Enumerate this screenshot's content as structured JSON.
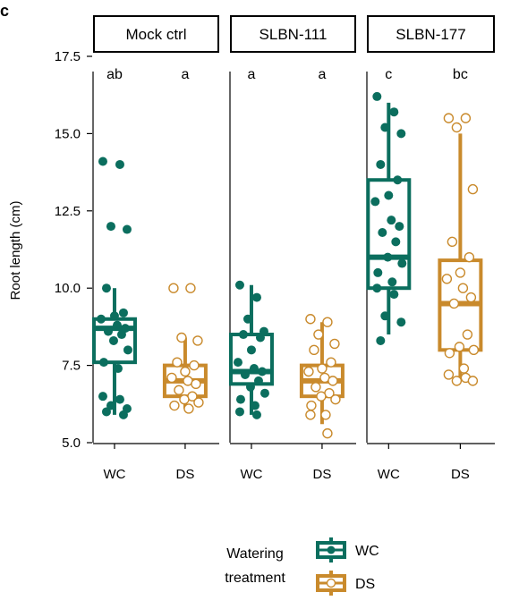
{
  "panel_label": "c",
  "colors": {
    "WC": "#0b6e5e",
    "DS": "#c98a2c"
  },
  "chart_data": {
    "type": "box",
    "ylabel": "Root length (cm)",
    "ylim": [
      5.0,
      17.5
    ],
    "yticks": [
      "5.0",
      "7.5",
      "10.0",
      "12.5",
      "15.0",
      "17.5"
    ],
    "facets": [
      {
        "name": "Mock ctrl",
        "groups": [
          {
            "label": "WC",
            "sig": "ab",
            "box": {
              "whisker_low": 5.9,
              "q1": 7.6,
              "median": 8.7,
              "q3": 9.0,
              "whisker_high": 10.0
            },
            "points": [
              14.1,
              14.0,
              12.0,
              11.9,
              10.0,
              9.2,
              9.1,
              9.0,
              8.8,
              8.7,
              8.6,
              8.5,
              8.3,
              8.0,
              7.6,
              7.4,
              6.5,
              6.4,
              6.2,
              6.1,
              6.0,
              5.9
            ]
          },
          {
            "label": "DS",
            "sig": "a",
            "box": {
              "whisker_low": 6.1,
              "q1": 6.5,
              "median": 7.0,
              "q3": 7.5,
              "whisker_high": 8.4
            },
            "points": [
              10.0,
              10.0,
              8.4,
              8.3,
              7.6,
              7.5,
              7.3,
              7.1,
              7.0,
              6.9,
              6.7,
              6.5,
              6.4,
              6.3,
              6.2,
              6.1
            ]
          }
        ]
      },
      {
        "name": "SLBN-111",
        "groups": [
          {
            "label": "WC",
            "sig": "a",
            "box": {
              "whisker_low": 5.9,
              "q1": 6.9,
              "median": 7.3,
              "q3": 8.5,
              "whisker_high": 10.1
            },
            "points": [
              10.1,
              9.7,
              9.0,
              8.6,
              8.5,
              8.4,
              8.0,
              7.6,
              7.4,
              7.3,
              7.2,
              7.0,
              6.8,
              6.6,
              6.4,
              6.2,
              6.0,
              5.9
            ]
          },
          {
            "label": "DS",
            "sig": "a",
            "box": {
              "whisker_low": 5.6,
              "q1": 6.5,
              "median": 7.0,
              "q3": 7.5,
              "whisker_high": 8.9
            },
            "points": [
              9.0,
              8.9,
              8.5,
              8.2,
              8.0,
              7.6,
              7.4,
              7.3,
              7.1,
              7.0,
              6.8,
              6.6,
              6.5,
              6.4,
              6.2,
              5.9,
              5.9,
              5.3
            ]
          }
        ]
      },
      {
        "name": "SLBN-177",
        "groups": [
          {
            "label": "WC",
            "sig": "c",
            "box": {
              "whisker_low": 8.5,
              "q1": 10.0,
              "median": 11.0,
              "q3": 13.5,
              "whisker_high": 16.0
            },
            "points": [
              16.2,
              15.7,
              15.2,
              15.0,
              14.0,
              13.5,
              13.0,
              12.8,
              12.2,
              12.0,
              11.8,
              11.5,
              11.0,
              10.8,
              10.5,
              10.2,
              10.0,
              9.8,
              9.1,
              8.9,
              8.3
            ]
          },
          {
            "label": "DS",
            "sig": "bc",
            "box": {
              "whisker_low": 7.0,
              "q1": 8.0,
              "median": 9.5,
              "q3": 10.9,
              "whisker_high": 15.0
            },
            "points": [
              15.5,
              15.5,
              15.2,
              13.2,
              11.5,
              11.0,
              10.5,
              10.3,
              10.0,
              9.7,
              9.5,
              8.5,
              8.1,
              8.0,
              7.9,
              7.4,
              7.2,
              7.1,
              7.0,
              7.0
            ]
          }
        ]
      }
    ],
    "legend": {
      "title": [
        "Watering",
        "treatment"
      ],
      "entries": [
        "WC",
        "DS"
      ],
      "placement": "bottom"
    }
  }
}
